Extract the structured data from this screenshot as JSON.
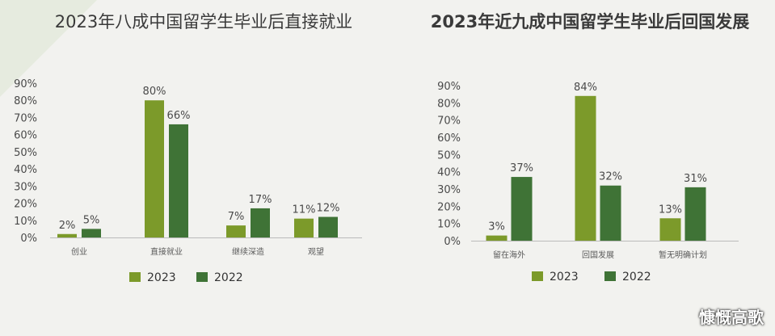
{
  "colors": {
    "series_2023": "#7c9a2a",
    "series_2022": "#3f7336",
    "axis": "#bbbbbb",
    "corner": "#e6ebdf"
  },
  "chart_data": [
    {
      "type": "bar",
      "title": "2023年八成中国留学生毕业后直接就业",
      "categories": [
        "创业",
        "直接就业",
        "继续深造",
        "观望"
      ],
      "series": [
        {
          "name": "2023",
          "values": [
            2,
            80,
            7,
            11
          ],
          "labels": [
            "2%",
            "80%",
            "7%",
            "11%"
          ]
        },
        {
          "name": "2022",
          "values": [
            5,
            66,
            17,
            12
          ],
          "labels": [
            "5%",
            "66%",
            "17%",
            "12%"
          ]
        }
      ],
      "yticks": [
        "0%",
        "10%",
        "20%",
        "30%",
        "40%",
        "50%",
        "60%",
        "70%",
        "80%",
        "90%"
      ],
      "ylim": [
        0,
        90
      ],
      "xlabel": "",
      "ylabel": "",
      "legend": "bottom"
    },
    {
      "type": "bar",
      "title": "2023年近九成中国留学生毕业后回国发展",
      "categories": [
        "留在海外",
        "回国发展",
        "暂无明确计划"
      ],
      "series": [
        {
          "name": "2023",
          "values": [
            3,
            84,
            13
          ],
          "labels": [
            "3%",
            "84%",
            "13%"
          ]
        },
        {
          "name": "2022",
          "values": [
            37,
            32,
            31
          ],
          "labels": [
            "37%",
            "32%",
            "31%"
          ]
        }
      ],
      "yticks": [
        "0%",
        "10%",
        "20%",
        "30%",
        "40%",
        "50%",
        "60%",
        "70%",
        "80%",
        "90%"
      ],
      "ylim": [
        0,
        90
      ],
      "xlabel": "",
      "ylabel": "",
      "legend": "bottom"
    }
  ],
  "watermark": "慷慨高歌"
}
